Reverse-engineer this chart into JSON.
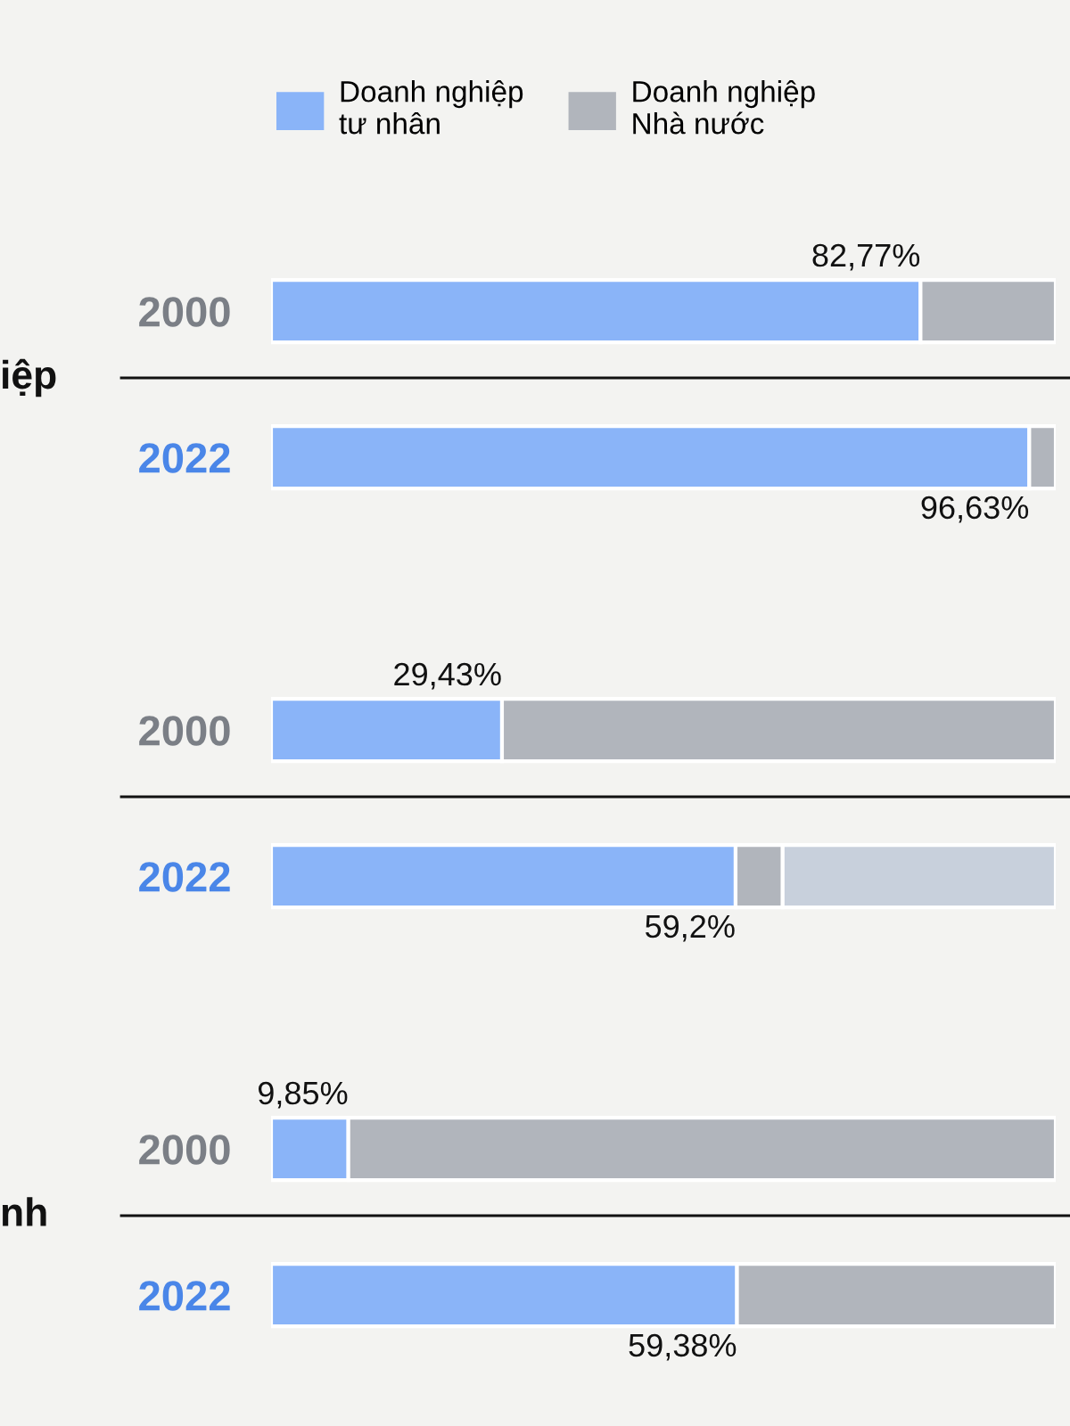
{
  "chart_data": [
    {
      "type": "bar",
      "orientation": "horizontal",
      "stacked": true,
      "ylabel": "iệp",
      "categories": [
        "2000",
        "2022"
      ],
      "xlim": [
        0,
        100
      ],
      "tick_labels": "y",
      "legend": "top",
      "series": [
        {
          "name": "Doanh nghiệp tư nhân",
          "color": "#8ab4f8",
          "values": [
            82.77,
            96.63
          ],
          "value_labels": [
            "82,77%",
            "96,63%"
          ]
        },
        {
          "name": "Doanh nghiệp Nhà nước",
          "color": "#b1b5bc",
          "values": [
            17.23,
            3.37
          ]
        }
      ]
    },
    {
      "type": "bar",
      "orientation": "horizontal",
      "stacked": true,
      "categories": [
        "2000",
        "2022"
      ],
      "xlim": [
        0,
        100
      ],
      "tick_labels": "y",
      "series": [
        {
          "color": "#8ab4f8",
          "values": [
            29.43,
            59.2
          ],
          "value_labels": [
            "29,43%",
            "59,2%"
          ]
        },
        {
          "color": "#b1b5bc",
          "values": [
            70.57,
            6.0
          ]
        },
        {
          "color": "#c8d0dc",
          "values": [
            null,
            34.8
          ]
        }
      ]
    },
    {
      "type": "bar",
      "orientation": "horizontal",
      "stacked": true,
      "ylabel": "nh",
      "categories": [
        "2000",
        "2022"
      ],
      "xlim": [
        0,
        100
      ],
      "tick_labels": "y",
      "series": [
        {
          "color": "#8ab4f8",
          "values": [
            9.85,
            59.38
          ],
          "value_labels": [
            "9,85%",
            "59,38%"
          ]
        },
        {
          "color": "#b1b5bc",
          "values": [
            90.15,
            40.62
          ]
        }
      ]
    }
  ]
}
